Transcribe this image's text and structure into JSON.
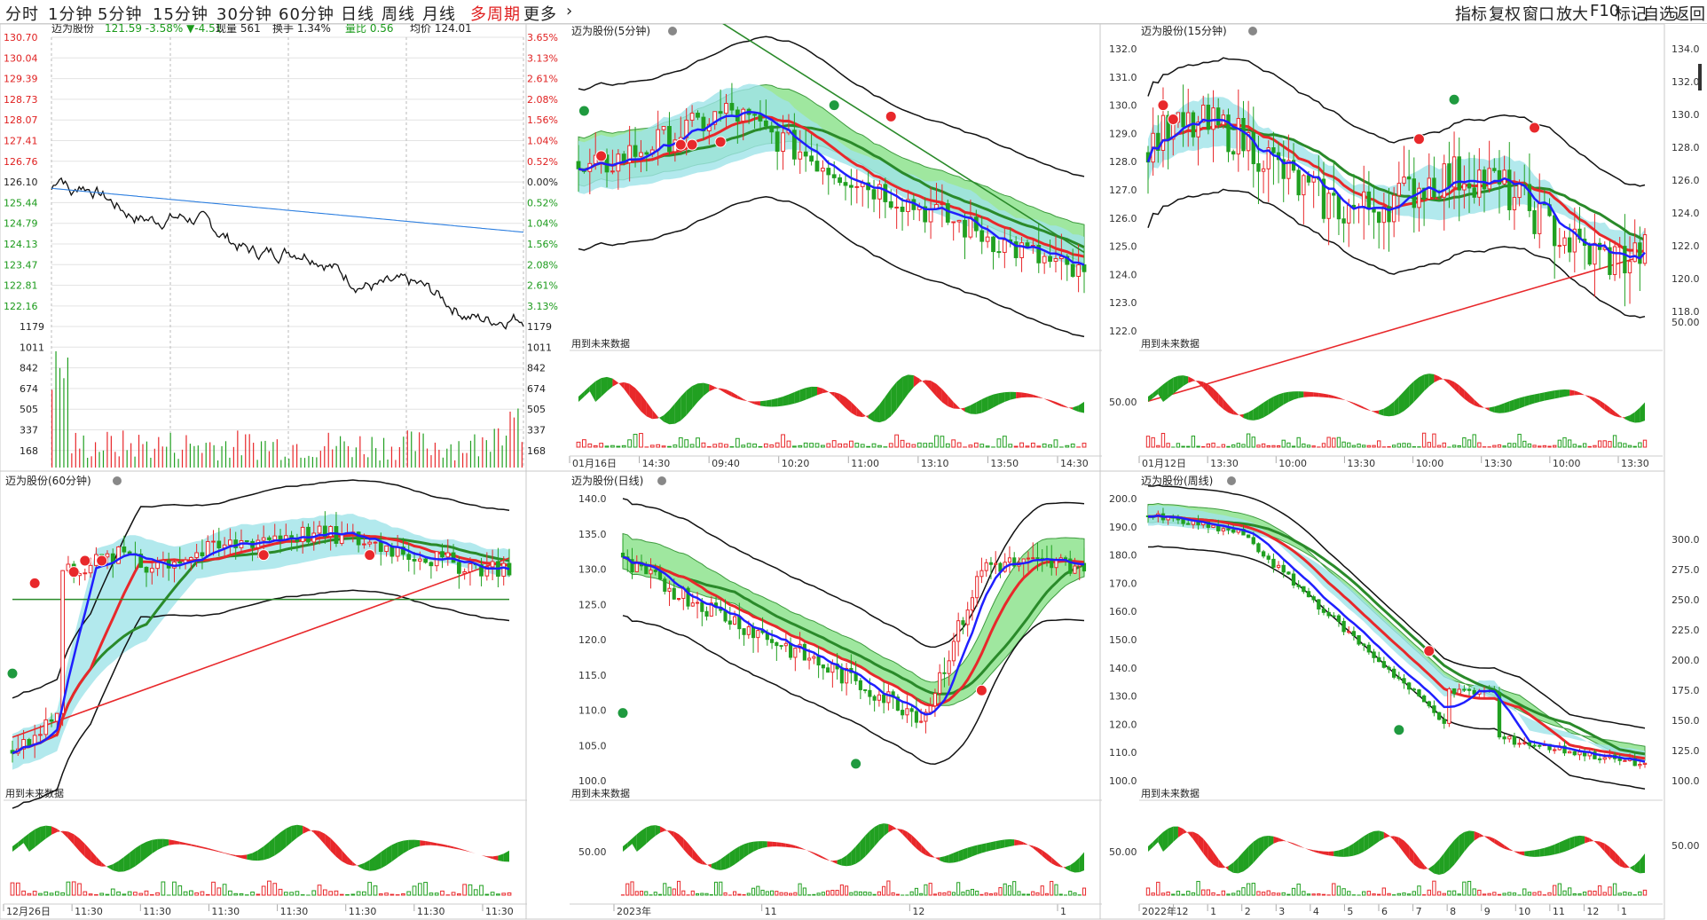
{
  "toolbar": {
    "left": [
      "分时",
      "1分钟",
      "5分钟",
      "15分钟",
      "30分钟",
      "60分钟",
      "日线",
      "周线",
      "月线",
      "多周期",
      "更多"
    ],
    "active": "多周期",
    "right": [
      "指标",
      "复权",
      "窗口",
      "放大",
      "F10",
      "标记",
      "自选",
      "返回"
    ]
  },
  "colors": {
    "up": "#e8282b",
    "down": "#21a021",
    "ma_blue": "#1f1fff",
    "bg": "#ffffff",
    "grid": "#d9d9d9",
    "axis_red": "#e02020",
    "axis_green": "#1a9a1a",
    "band": "#9fe3e8",
    "cloud": "#8fe38f"
  },
  "panels": [
    {
      "id": "timeshare",
      "title": "迈为股份",
      "quote": "121.59 -3.58% ▼-4.51",
      "stats": [
        "现量 561",
        "换手 1.34%",
        "量比 0.56",
        "均价 124.01"
      ],
      "left_ticks": [
        "130.70",
        "130.04",
        "129.39",
        "128.73",
        "128.07",
        "127.41",
        "126.76",
        "126.10",
        "125.44",
        "124.79",
        "124.13",
        "123.47",
        "122.81",
        "122.16",
        "1179",
        "1011",
        "842",
        "674",
        "505",
        "337",
        "168"
      ],
      "right_ticks": [
        "3.65%",
        "3.13%",
        "2.61%",
        "2.08%",
        "1.56%",
        "1.04%",
        "0.52%",
        "0.00%",
        "0.52%",
        "1.04%",
        "1.56%",
        "2.08%",
        "2.61%",
        "3.13%",
        "1179",
        "1011",
        "842",
        "674",
        "505",
        "337",
        "168"
      ]
    },
    {
      "id": "m5",
      "title": "迈为股份(5分钟)",
      "note": "用到未来数据",
      "xlabels": [
        "01月16日",
        "14:30",
        "09:40",
        "10:20",
        "11:00",
        "13:10",
        "13:50",
        "14:30"
      ]
    },
    {
      "id": "m15",
      "title": "迈为股份(15分钟)",
      "note": "用到未来数据",
      "yticks": [
        "132.0",
        "131.0",
        "130.0",
        "129.0",
        "128.0",
        "127.0",
        "126.0",
        "125.0",
        "124.0",
        "123.0",
        "122.0"
      ],
      "sub_tick": "50.00",
      "xlabels": [
        "01月12日",
        "13:30",
        "10:00",
        "13:30",
        "10:00",
        "13:30",
        "10:00",
        "13:30"
      ]
    },
    {
      "id": "m60",
      "title": "迈为股份(60分钟)",
      "note": "用到未来数据",
      "xlabels": [
        "12月26日",
        "11:30",
        "11:30",
        "11:30",
        "11:30",
        "11:30",
        "11:30",
        "11:30"
      ]
    },
    {
      "id": "day",
      "title": "迈为股份(日线)",
      "note": "用到未来数据",
      "yticks": [
        "140.0",
        "135.0",
        "130.0",
        "125.0",
        "120.0",
        "115.0",
        "110.0",
        "105.0",
        "100.0"
      ],
      "sub_tick": "50.00",
      "xlabels": [
        "2023年",
        "11",
        "12",
        "1"
      ]
    },
    {
      "id": "week",
      "title": "迈为股份(周线)",
      "note": "用到未来数据",
      "yticks": [
        "200.0",
        "190.0",
        "180.0",
        "170.0",
        "160.0",
        "150.0",
        "140.0",
        "130.0",
        "120.0",
        "110.0",
        "100.0"
      ],
      "sub_tick": "50.00",
      "xlabels": [
        "2022年",
        "12",
        "1",
        "2",
        "3",
        "4",
        "5",
        "6",
        "7",
        "8",
        "9",
        "10",
        "11",
        "12",
        "1"
      ]
    }
  ],
  "right_axis": {
    "top": [
      "134.0",
      "132.0",
      "130.0",
      "128.0",
      "126.0",
      "124.0",
      "122.0",
      "120.0",
      "118.0"
    ],
    "top_sub": "50.00",
    "bottom": [
      "300.0",
      "275.0",
      "250.0",
      "225.0",
      "200.0",
      "175.0",
      "150.0",
      "125.0",
      "100.0"
    ],
    "bottom_sub": "50.00"
  }
}
